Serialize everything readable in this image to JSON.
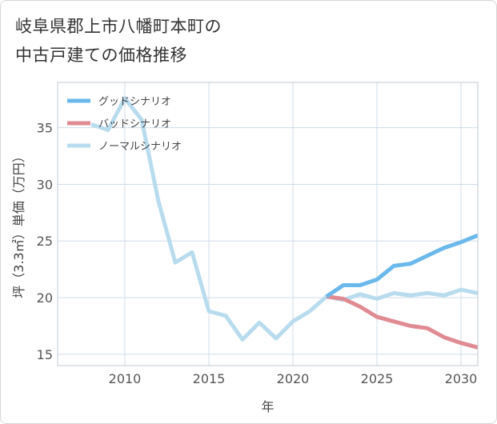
{
  "title_line1": "岐阜県郡上市八幡町本町の",
  "title_line2": "中古戸建ての価格推移",
  "colors": {
    "good": "#6bb8ec",
    "bad": "#e08a92",
    "normal": "#b8dcee",
    "grid": "#d0dde8",
    "frame": "#bfcbd6"
  },
  "chart_data": {
    "type": "line",
    "xlabel": "年",
    "ylabel": "坪（3.3㎡）単価（万円）",
    "xlim": [
      2006,
      2031
    ],
    "ylim": [
      14,
      39
    ],
    "xticks": [
      2010,
      2015,
      2020,
      2025,
      2030
    ],
    "yticks": [
      15,
      20,
      25,
      30,
      35
    ],
    "grid": true,
    "legend_position": "top-left",
    "series": [
      {
        "name": "グッドシナリオ",
        "key": "good",
        "x": [
          2022,
          2023,
          2024,
          2025,
          2026,
          2027,
          2028,
          2029,
          2030,
          2031
        ],
        "y": [
          20.1,
          21.1,
          21.1,
          21.6,
          22.8,
          23.0,
          23.7,
          24.4,
          24.9,
          25.5
        ]
      },
      {
        "name": "バッドシナリオ",
        "key": "bad",
        "x": [
          2022,
          2023,
          2024,
          2025,
          2026,
          2027,
          2028,
          2029,
          2030,
          2031
        ],
        "y": [
          20.1,
          19.9,
          19.2,
          18.3,
          17.9,
          17.5,
          17.3,
          16.5,
          16.0,
          15.6
        ]
      },
      {
        "name": "ノーマルシナリオ",
        "key": "normal",
        "x": [
          2008,
          2009,
          2010,
          2011,
          2012,
          2013,
          2014,
          2015,
          2016,
          2017,
          2018,
          2019,
          2020,
          2021,
          2022,
          2023,
          2024,
          2025,
          2026,
          2027,
          2028,
          2029,
          2030,
          2031
        ],
        "y": [
          35.3,
          34.8,
          37.6,
          35.7,
          28.5,
          23.1,
          24.0,
          18.8,
          18.4,
          16.3,
          17.8,
          16.4,
          17.9,
          18.8,
          20.1,
          19.8,
          20.3,
          19.9,
          20.4,
          20.2,
          20.4,
          20.2,
          20.7,
          20.4
        ]
      }
    ]
  }
}
